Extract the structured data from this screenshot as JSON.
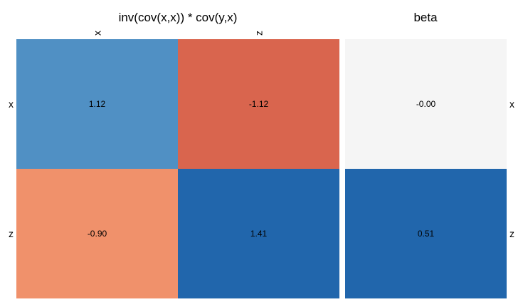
{
  "chart_data": [
    {
      "type": "heatmap",
      "title": "inv(cov(x,x)) * cov(y,x)",
      "x_categories": [
        "x",
        "z"
      ],
      "y_categories": [
        "x",
        "z"
      ],
      "values": [
        [
          1.12,
          -1.12
        ],
        [
          -0.9,
          1.41
        ]
      ],
      "value_labels": [
        [
          "1.12",
          "-1.12"
        ],
        [
          "-0.90",
          "1.41"
        ]
      ],
      "cell_colors": [
        [
          "#5090c4",
          "#d9654e"
        ],
        [
          "#f0916b",
          "#2166ac"
        ]
      ],
      "x_tick_position": "top",
      "y_tick_position": "left",
      "grid": false,
      "legend": "none"
    },
    {
      "type": "heatmap",
      "title": "beta",
      "x_categories": [],
      "y_categories": [
        "x",
        "z"
      ],
      "values": [
        [
          -0.0
        ],
        [
          0.51
        ]
      ],
      "value_labels": [
        [
          "-0.00"
        ],
        [
          "0.51"
        ]
      ],
      "cell_colors": [
        [
          "#f5f5f5"
        ],
        [
          "#2166ac"
        ]
      ],
      "y_tick_position": "right",
      "grid": false,
      "legend": "none"
    }
  ]
}
